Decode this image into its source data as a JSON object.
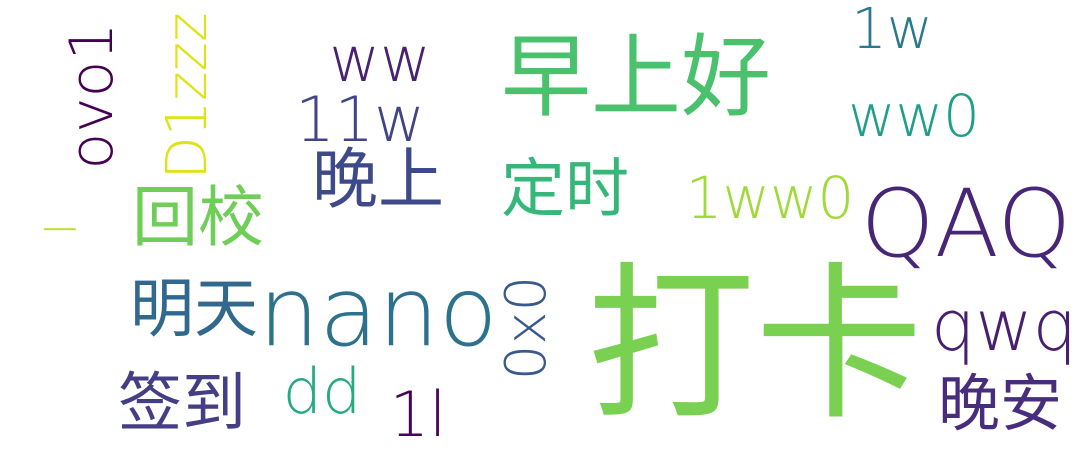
{
  "words": [
    {
      "text": "打卡",
      "color": "#7ad151"
    },
    {
      "text": "nano",
      "color": "#2c728e"
    },
    {
      "text": "QAQ",
      "color": "#482677"
    },
    {
      "text": "早上好",
      "color": "#4ac16d"
    },
    {
      "text": "晚上",
      "color": "#3e4989"
    },
    {
      "text": "回校",
      "color": "#6ece58"
    },
    {
      "text": "定时",
      "color": "#35b779"
    },
    {
      "text": "明天",
      "color": "#31688e"
    },
    {
      "text": "签到",
      "color": "#433e85"
    },
    {
      "text": "晚安",
      "color": "#472d7b"
    },
    {
      "text": "qwq",
      "color": "#481f70"
    },
    {
      "text": "ovo1",
      "color": "#440154"
    },
    {
      "text": "D1zzz",
      "color": "#dde318"
    },
    {
      "text": "0x0",
      "color": "#38598c"
    },
    {
      "text": "11w",
      "color": "#414487"
    },
    {
      "text": "ww",
      "color": "#482173"
    },
    {
      "text": "1ww0",
      "color": "#a0da39"
    },
    {
      "text": "ww0",
      "color": "#1f9e89"
    },
    {
      "text": "1w",
      "color": "#2a788e"
    },
    {
      "text": "dd",
      "color": "#25ab82"
    },
    {
      "text": "1l",
      "color": "#450457"
    },
    {
      "text": "l",
      "color": "#bddf26"
    }
  ]
}
